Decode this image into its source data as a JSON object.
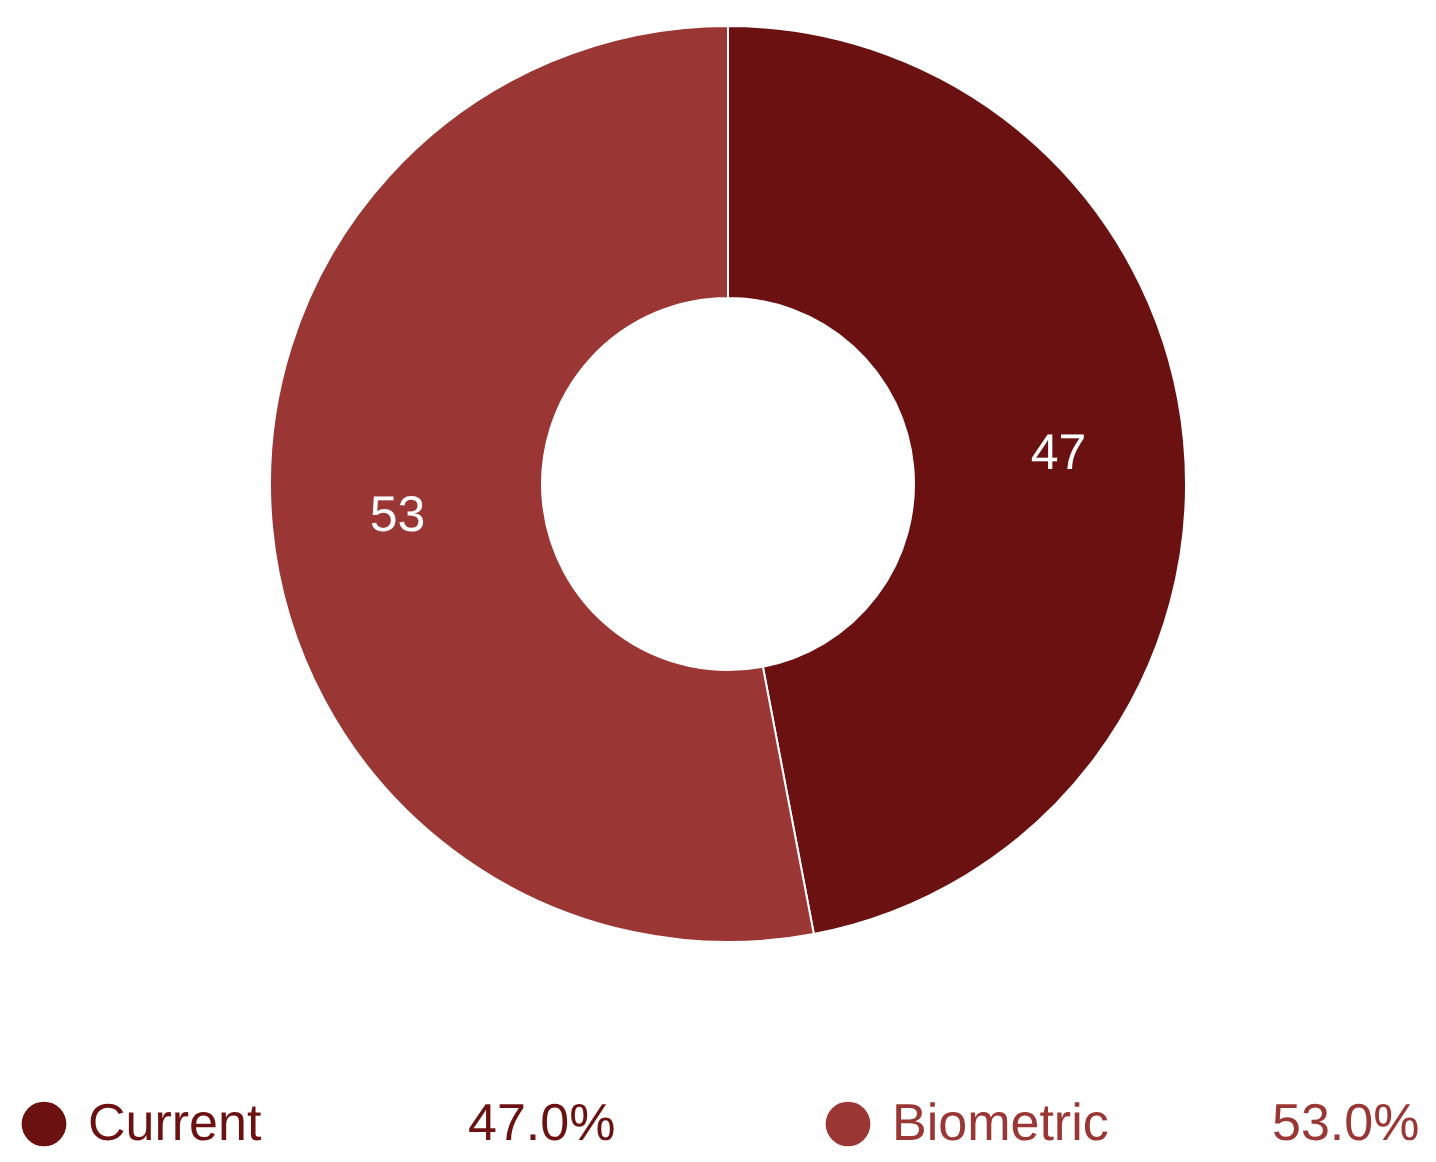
{
  "chart_data": {
    "type": "donut",
    "categories": [
      "Current",
      "Biometric"
    ],
    "values": [
      47,
      53
    ],
    "colors": [
      "#6b1111",
      "#9a3634"
    ],
    "data_labels": true,
    "annotations": [
      "47.0%",
      "53.0%"
    ],
    "legend": "bottom"
  }
}
